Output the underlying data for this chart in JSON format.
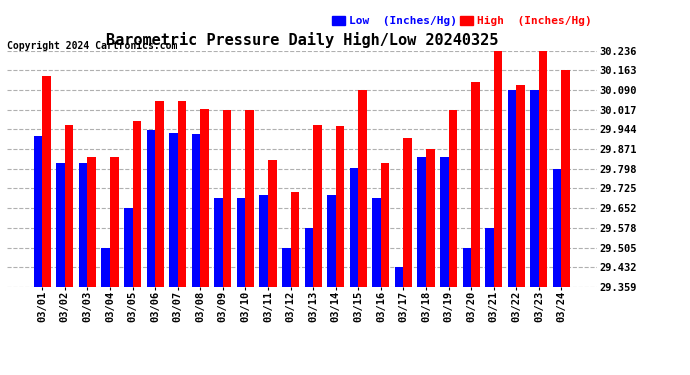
{
  "title": "Barometric Pressure Daily High/Low 20240325",
  "copyright": "Copyright 2024 Cartronics.com",
  "legend_low": "Low  (Inches/Hg)",
  "legend_high": "High  (Inches/Hg)",
  "dates": [
    "03/01",
    "03/02",
    "03/03",
    "03/04",
    "03/05",
    "03/06",
    "03/07",
    "03/08",
    "03/09",
    "03/10",
    "03/11",
    "03/12",
    "03/13",
    "03/14",
    "03/15",
    "03/16",
    "03/17",
    "03/18",
    "03/19",
    "03/20",
    "03/21",
    "03/22",
    "03/23",
    "03/24"
  ],
  "high": [
    30.14,
    29.96,
    29.84,
    29.84,
    29.975,
    30.05,
    30.05,
    30.02,
    30.017,
    30.017,
    29.83,
    29.71,
    29.96,
    29.955,
    30.09,
    29.82,
    29.91,
    29.87,
    30.017,
    30.12,
    30.236,
    30.11,
    30.236,
    30.163
  ],
  "low": [
    29.92,
    29.82,
    29.82,
    29.505,
    29.652,
    29.94,
    29.93,
    29.925,
    29.69,
    29.69,
    29.7,
    29.505,
    29.578,
    29.7,
    29.8,
    29.688,
    29.432,
    29.84,
    29.84,
    29.505,
    29.578,
    30.09,
    30.09,
    29.798
  ],
  "ylim_min": 29.359,
  "ylim_max": 30.236,
  "yticks": [
    29.359,
    29.432,
    29.505,
    29.578,
    29.652,
    29.725,
    29.798,
    29.871,
    29.944,
    30.017,
    30.09,
    30.163,
    30.236
  ],
  "bg_color": "#ffffff",
  "grid_color": "#b0b0b0",
  "bar_color_low": "#0000ff",
  "bar_color_high": "#ff0000",
  "title_fontsize": 11,
  "tick_fontsize": 7.5,
  "legend_fontsize": 8,
  "copyright_fontsize": 7
}
